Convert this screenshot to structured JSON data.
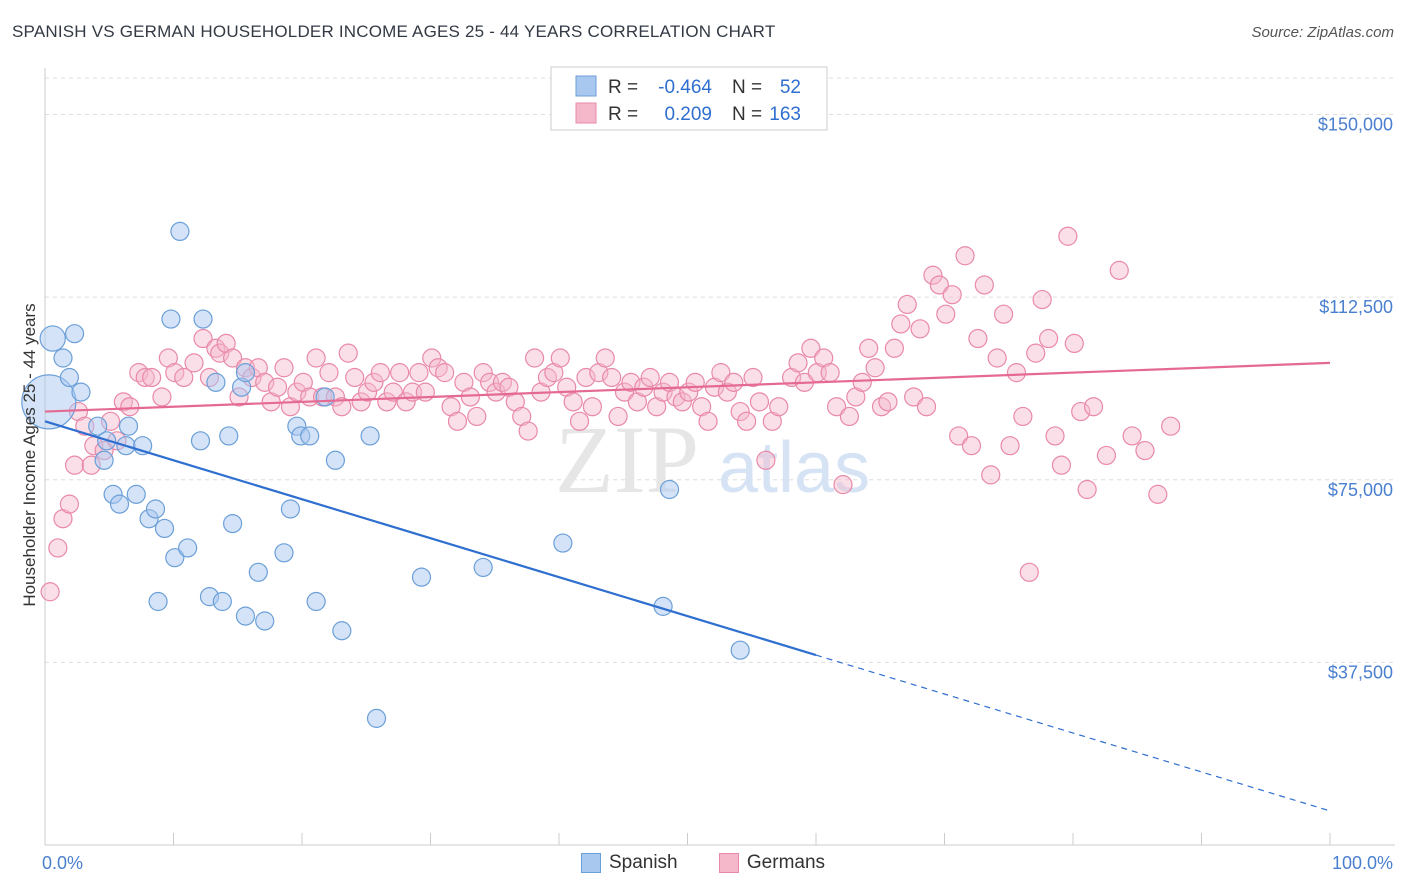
{
  "title": "SPANISH VS GERMAN HOUSEHOLDER INCOME AGES 25 - 44 YEARS CORRELATION CHART",
  "source": "Source: ZipAtlas.com",
  "watermark": {
    "zip": "ZIP",
    "atlas": "atlas"
  },
  "colors": {
    "spanish_fill": "#a9c8f0",
    "spanish_stroke": "#6b9fd8",
    "spanish_line": "#2f6fcf",
    "german_fill": "#f5b8cb",
    "german_stroke": "#e989a8",
    "german_line": "#e56a93",
    "axis_label": "#4a7fcf",
    "grid": "#dddddd"
  },
  "legend": {
    "rows": [
      {
        "r_label": "R =",
        "r_value": "-0.464",
        "n_label": "N =",
        "n_value": "52"
      },
      {
        "r_label": "R =",
        "r_value": "0.209",
        "n_label": "N =",
        "n_value": "163"
      }
    ]
  },
  "bottom_legend": {
    "spanish": "Spanish",
    "germans": "Germans"
  },
  "chart_data": {
    "type": "scatter",
    "xlabel": "",
    "ylabel": "Householder Income Ages 25 - 44 years",
    "xlim": [
      0,
      100
    ],
    "ylim": [
      0,
      157500
    ],
    "x_tick_labels": [
      "0.0%",
      "100.0%"
    ],
    "y_ticks": [
      37500,
      75000,
      112500,
      150000
    ],
    "y_tick_labels": [
      "$37,500",
      "$75,000",
      "$112,500",
      "$150,000"
    ],
    "grid": true,
    "legend_position": "top-center",
    "series": [
      {
        "name": "Spanish",
        "r": -0.464,
        "n": 52,
        "trend": {
          "x0": 0,
          "y0": 87000,
          "x1": 60,
          "y1": 39000,
          "dash_x1": 100,
          "dash_y1": 7000
        },
        "points": [
          [
            0.3,
            91000,
            3
          ],
          [
            0.6,
            104000,
            1.4
          ],
          [
            1.4,
            100000,
            1
          ],
          [
            2.3,
            105000,
            1
          ],
          [
            1.9,
            96000,
            1
          ],
          [
            2.8,
            93000,
            1
          ],
          [
            4.1,
            86000,
            1
          ],
          [
            4.8,
            83000,
            1
          ],
          [
            5.3,
            72000,
            1
          ],
          [
            4.6,
            79000,
            1
          ],
          [
            5.8,
            70000,
            1
          ],
          [
            6.5,
            86000,
            1
          ],
          [
            6.3,
            82000,
            1
          ],
          [
            7.1,
            72000,
            1
          ],
          [
            7.6,
            82000,
            1
          ],
          [
            8.1,
            67000,
            1
          ],
          [
            8.6,
            69000,
            1
          ],
          [
            9.3,
            65000,
            1
          ],
          [
            8.8,
            50000,
            1
          ],
          [
            10.1,
            59000,
            1
          ],
          [
            11.1,
            61000,
            1
          ],
          [
            10.5,
            126000,
            1
          ],
          [
            9.8,
            108000,
            1
          ],
          [
            12.3,
            108000,
            1
          ],
          [
            12.1,
            83000,
            1
          ],
          [
            12.8,
            51000,
            1
          ],
          [
            13.3,
            95000,
            1
          ],
          [
            13.8,
            50000,
            1
          ],
          [
            14.3,
            84000,
            1
          ],
          [
            14.6,
            66000,
            1
          ],
          [
            15.6,
            47000,
            1
          ],
          [
            15.3,
            94000,
            1
          ],
          [
            15.6,
            97000,
            1
          ],
          [
            16.6,
            56000,
            1
          ],
          [
            17.1,
            46000,
            1
          ],
          [
            18.6,
            60000,
            1
          ],
          [
            19.1,
            69000,
            1
          ],
          [
            19.6,
            86000,
            1
          ],
          [
            19.9,
            84000,
            1
          ],
          [
            20.6,
            84000,
            1
          ],
          [
            21.1,
            50000,
            1
          ],
          [
            21.8,
            92000,
            1
          ],
          [
            22.6,
            79000,
            1
          ],
          [
            23.1,
            44000,
            1
          ],
          [
            25.3,
            84000,
            1
          ],
          [
            25.8,
            26000,
            1
          ],
          [
            29.3,
            55000,
            1
          ],
          [
            34.1,
            57000,
            1
          ],
          [
            40.3,
            62000,
            1
          ],
          [
            48.1,
            49000,
            1
          ],
          [
            48.6,
            73000,
            1
          ],
          [
            54.1,
            40000,
            1
          ]
        ]
      },
      {
        "name": "Germans",
        "r": 0.209,
        "n": 163,
        "trend": {
          "x0": 0,
          "y0": 89000,
          "x1": 100,
          "y1": 99000
        },
        "points": [
          [
            0.4,
            52000
          ],
          [
            1.0,
            61000
          ],
          [
            1.4,
            67000
          ],
          [
            1.9,
            70000
          ],
          [
            2.3,
            78000
          ],
          [
            2.6,
            89000
          ],
          [
            3.1,
            86000
          ],
          [
            3.6,
            78000
          ],
          [
            3.8,
            82000
          ],
          [
            4.6,
            81000
          ],
          [
            5.1,
            87000
          ],
          [
            5.6,
            83000
          ],
          [
            6.1,
            91000
          ],
          [
            6.6,
            90000
          ],
          [
            7.3,
            97000
          ],
          [
            7.8,
            96000
          ],
          [
            8.3,
            96000
          ],
          [
            9.1,
            92000
          ],
          [
            9.6,
            100000
          ],
          [
            10.1,
            97000
          ],
          [
            10.8,
            96000
          ],
          [
            11.6,
            99000
          ],
          [
            12.3,
            104000
          ],
          [
            12.8,
            96000
          ],
          [
            13.3,
            102000
          ],
          [
            13.6,
            101000
          ],
          [
            14.1,
            103000
          ],
          [
            14.6,
            100000
          ],
          [
            15.1,
            92000
          ],
          [
            15.6,
            98000
          ],
          [
            16.1,
            96000
          ],
          [
            16.6,
            98000
          ],
          [
            17.1,
            95000
          ],
          [
            17.6,
            91000
          ],
          [
            18.1,
            94000
          ],
          [
            18.6,
            98000
          ],
          [
            19.1,
            90000
          ],
          [
            19.6,
            93000
          ],
          [
            20.1,
            95000
          ],
          [
            20.6,
            92000
          ],
          [
            21.1,
            100000
          ],
          [
            21.6,
            92000
          ],
          [
            22.1,
            97000
          ],
          [
            22.6,
            92000
          ],
          [
            23.1,
            90000
          ],
          [
            23.6,
            101000
          ],
          [
            24.1,
            96000
          ],
          [
            24.6,
            91000
          ],
          [
            25.1,
            93000
          ],
          [
            25.6,
            95000
          ],
          [
            26.1,
            97000
          ],
          [
            26.6,
            91000
          ],
          [
            27.1,
            93000
          ],
          [
            27.6,
            97000
          ],
          [
            28.1,
            91000
          ],
          [
            28.6,
            93000
          ],
          [
            29.1,
            97000
          ],
          [
            29.6,
            93000
          ],
          [
            30.1,
            100000
          ],
          [
            30.6,
            98000
          ],
          [
            31.1,
            97000
          ],
          [
            31.6,
            90000
          ],
          [
            32.1,
            87000
          ],
          [
            32.6,
            95000
          ],
          [
            33.1,
            92000
          ],
          [
            33.6,
            88000
          ],
          [
            34.1,
            97000
          ],
          [
            34.6,
            95000
          ],
          [
            35.1,
            93000
          ],
          [
            35.6,
            95000
          ],
          [
            36.1,
            94000
          ],
          [
            36.6,
            91000
          ],
          [
            37.1,
            88000
          ],
          [
            37.6,
            85000
          ],
          [
            38.1,
            100000
          ],
          [
            38.6,
            93000
          ],
          [
            39.1,
            96000
          ],
          [
            39.6,
            97000
          ],
          [
            40.1,
            100000
          ],
          [
            40.6,
            94000
          ],
          [
            41.1,
            91000
          ],
          [
            41.6,
            87000
          ],
          [
            42.1,
            96000
          ],
          [
            42.6,
            90000
          ],
          [
            43.1,
            97000
          ],
          [
            43.6,
            100000
          ],
          [
            44.1,
            96000
          ],
          [
            44.6,
            88000
          ],
          [
            45.1,
            93000
          ],
          [
            45.6,
            95000
          ],
          [
            46.1,
            91000
          ],
          [
            46.6,
            94000
          ],
          [
            47.1,
            96000
          ],
          [
            47.6,
            90000
          ],
          [
            48.1,
            93000
          ],
          [
            48.6,
            95000
          ],
          [
            49.1,
            92000
          ],
          [
            49.6,
            91000
          ],
          [
            50.1,
            93000
          ],
          [
            50.6,
            95000
          ],
          [
            51.1,
            90000
          ],
          [
            51.6,
            87000
          ],
          [
            52.1,
            94000
          ],
          [
            52.6,
            97000
          ],
          [
            53.1,
            93000
          ],
          [
            53.6,
            95000
          ],
          [
            54.1,
            89000
          ],
          [
            54.6,
            87000
          ],
          [
            55.1,
            96000
          ],
          [
            55.6,
            91000
          ],
          [
            56.1,
            79000
          ],
          [
            56.6,
            87000
          ],
          [
            57.1,
            90000
          ],
          [
            58.1,
            96000
          ],
          [
            58.6,
            99000
          ],
          [
            59.1,
            95000
          ],
          [
            59.6,
            102000
          ],
          [
            60.1,
            97000
          ],
          [
            60.6,
            100000
          ],
          [
            61.1,
            97000
          ],
          [
            61.6,
            90000
          ],
          [
            62.1,
            74000
          ],
          [
            62.6,
            88000
          ],
          [
            63.1,
            92000
          ],
          [
            63.6,
            95000
          ],
          [
            64.1,
            102000
          ],
          [
            64.6,
            98000
          ],
          [
            65.1,
            90000
          ],
          [
            65.6,
            91000
          ],
          [
            66.1,
            102000
          ],
          [
            66.6,
            107000
          ],
          [
            67.1,
            111000
          ],
          [
            67.6,
            92000
          ],
          [
            68.1,
            106000
          ],
          [
            68.6,
            90000
          ],
          [
            69.1,
            117000
          ],
          [
            69.6,
            115000
          ],
          [
            70.1,
            109000
          ],
          [
            70.6,
            113000
          ],
          [
            71.1,
            84000
          ],
          [
            71.6,
            121000
          ],
          [
            72.1,
            82000
          ],
          [
            72.6,
            104000
          ],
          [
            73.1,
            115000
          ],
          [
            73.6,
            76000
          ],
          [
            74.1,
            100000
          ],
          [
            74.6,
            109000
          ],
          [
            75.1,
            82000
          ],
          [
            75.6,
            97000
          ],
          [
            76.1,
            88000
          ],
          [
            76.6,
            56000
          ],
          [
            77.1,
            101000
          ],
          [
            77.6,
            112000
          ],
          [
            78.1,
            104000
          ],
          [
            78.6,
            84000
          ],
          [
            79.1,
            78000
          ],
          [
            79.6,
            125000
          ],
          [
            80.1,
            103000
          ],
          [
            80.6,
            89000
          ],
          [
            81.1,
            73000
          ],
          [
            81.6,
            90000
          ],
          [
            82.6,
            80000
          ],
          [
            83.6,
            118000
          ],
          [
            84.6,
            84000
          ],
          [
            85.6,
            81000
          ],
          [
            86.6,
            72000
          ],
          [
            87.6,
            86000
          ]
        ]
      }
    ]
  }
}
